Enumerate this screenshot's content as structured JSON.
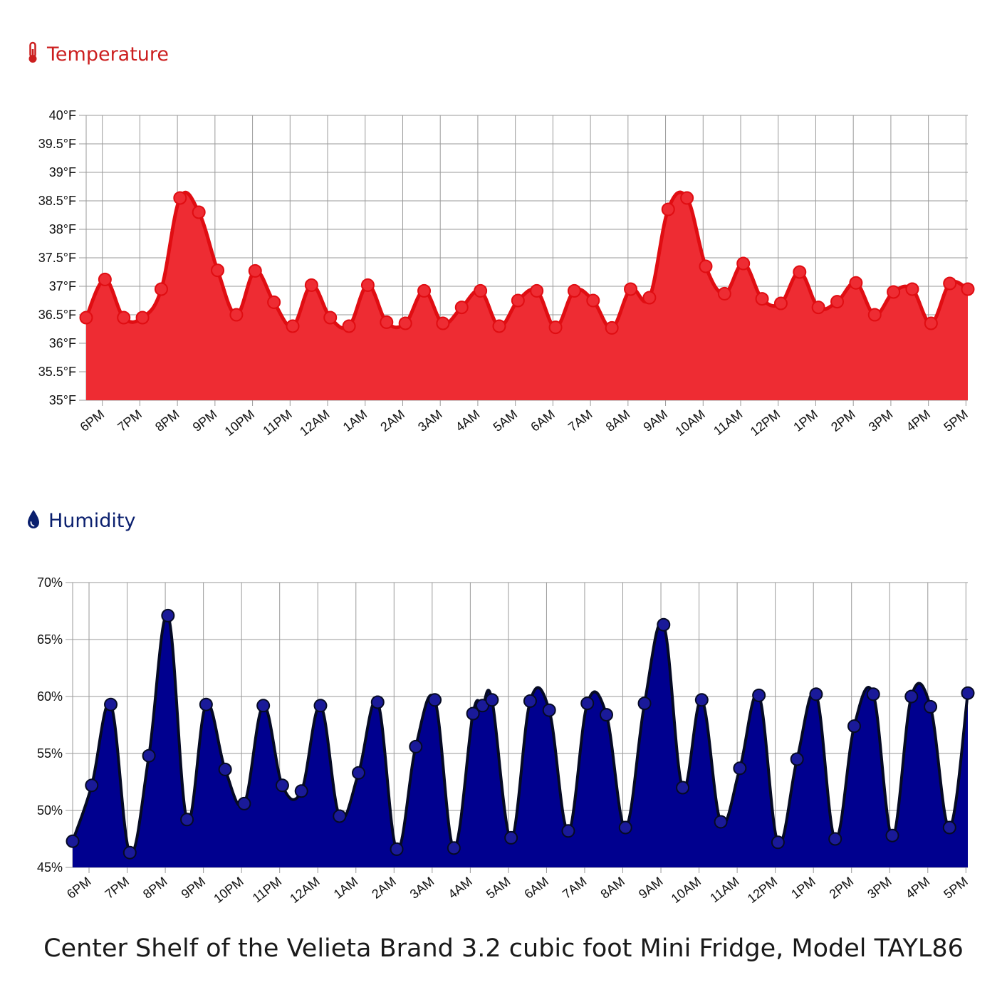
{
  "caption": "Center Shelf of the Velieta Brand 3.2 cubic foot Mini Fridge, Model TAYL86",
  "colors": {
    "temp_line": "#e00d12",
    "temp_fill": "#ee2c33",
    "hum_line": "#050a24",
    "hum_fill": "#00008f",
    "hum_dot": "#1a1a99",
    "grid": "#9a9a9a"
  },
  "chart_data": [
    {
      "type": "area",
      "title": "Temperature",
      "icon": "thermometer-icon",
      "x_tick_labels": [
        "6PM",
        "7PM",
        "8PM",
        "9PM",
        "10PM",
        "11PM",
        "12AM",
        "1AM",
        "2AM",
        "3AM",
        "4AM",
        "5AM",
        "6AM",
        "7AM",
        "8AM",
        "9AM",
        "10AM",
        "11AM",
        "12PM",
        "1PM",
        "2PM",
        "3PM",
        "4PM",
        "5PM"
      ],
      "y_tick_labels": [
        "35°F",
        "35.5°F",
        "36°F",
        "36.5°F",
        "37°F",
        "37.5°F",
        "38°F",
        "38.5°F",
        "39°F",
        "39.5°F",
        "40°F"
      ],
      "ylim": [
        35,
        40
      ],
      "xlim": [
        -0.43,
        23.05
      ],
      "grid": true,
      "series": [
        {
          "x": [
            -0.43,
            0.07,
            0.57,
            1.07,
            1.57,
            2.07,
            2.57,
            3.07,
            3.57,
            4.07,
            4.57,
            5.07,
            5.57,
            6.07,
            6.57,
            7.07,
            7.57,
            8.07,
            8.57,
            9.07,
            9.57,
            10.07,
            10.57,
            11.07,
            11.57,
            12.07,
            12.57,
            13.07,
            13.57,
            14.07,
            14.57,
            15.07,
            15.57,
            16.07,
            16.57,
            17.07,
            17.57,
            18.07,
            18.57,
            19.07,
            19.57,
            20.07,
            20.57,
            21.07,
            21.57,
            22.07,
            22.57,
            23.05
          ],
          "y": [
            36.45,
            37.12,
            36.45,
            36.45,
            36.95,
            38.55,
            38.3,
            37.28,
            36.5,
            37.27,
            36.72,
            36.3,
            37.02,
            36.45,
            36.3,
            37.02,
            36.37,
            36.35,
            36.92,
            36.35,
            36.63,
            36.92,
            36.3,
            36.75,
            36.92,
            36.28,
            36.92,
            36.75,
            36.27,
            36.95,
            36.8,
            38.35,
            38.55,
            37.35,
            36.87,
            37.4,
            36.78,
            36.7,
            37.25,
            36.63,
            36.73,
            37.06,
            36.5,
            36.9,
            36.95,
            36.35,
            37.05,
            36.95
          ]
        }
      ]
    },
    {
      "type": "area",
      "title": "Humidity",
      "icon": "water-drop-icon",
      "x_tick_labels": [
        "6PM",
        "7PM",
        "8PM",
        "9PM",
        "10PM",
        "11PM",
        "12AM",
        "1AM",
        "2AM",
        "3AM",
        "4AM",
        "5AM",
        "6AM",
        "7AM",
        "8AM",
        "9AM",
        "10AM",
        "11AM",
        "12PM",
        "1PM",
        "2PM",
        "3PM",
        "4PM",
        "5PM"
      ],
      "y_tick_labels": [
        "45%",
        "50%",
        "55%",
        "60%",
        "65%",
        "70%"
      ],
      "ylim": [
        45,
        70
      ],
      "xlim": [
        -0.43,
        23.05
      ],
      "grid": true,
      "series": [
        {
          "x": [
            -0.43,
            0.07,
            0.57,
            1.07,
            1.57,
            2.07,
            2.57,
            3.07,
            3.57,
            4.07,
            4.57,
            5.07,
            5.57,
            6.07,
            6.57,
            7.07,
            7.57,
            8.07,
            8.57,
            9.07,
            9.57,
            10.07,
            10.32,
            10.57,
            11.07,
            11.57,
            12.07,
            12.57,
            13.07,
            13.57,
            14.07,
            14.57,
            15.07,
            15.57,
            16.07,
            16.57,
            17.07,
            17.57,
            18.07,
            18.57,
            19.07,
            19.57,
            20.07,
            20.57,
            21.07,
            21.57,
            22.07,
            22.57,
            23.05
          ],
          "y": [
            47.3,
            52.2,
            59.3,
            46.3,
            54.8,
            67.1,
            49.2,
            59.3,
            53.6,
            50.6,
            59.2,
            52.2,
            51.7,
            59.2,
            49.5,
            53.3,
            59.5,
            46.6,
            55.6,
            59.7,
            46.7,
            58.5,
            59.2,
            59.7,
            47.6,
            59.6,
            58.8,
            48.2,
            59.4,
            58.4,
            48.5,
            59.4,
            66.3,
            52.0,
            59.7,
            49.0,
            53.7,
            60.1,
            47.2,
            54.5,
            60.2,
            47.5,
            57.4,
            60.2,
            47.8,
            60.0,
            59.1,
            48.5,
            60.3
          ]
        }
      ]
    }
  ]
}
